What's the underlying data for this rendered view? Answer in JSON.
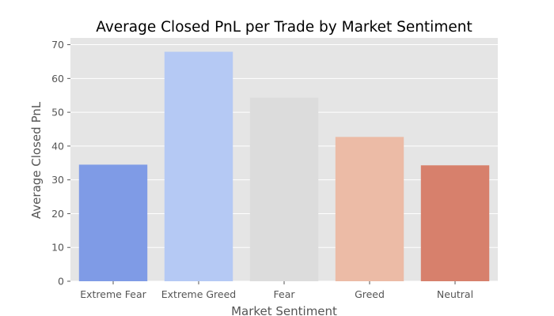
{
  "chart_data": {
    "type": "bar",
    "title": "Average Closed PnL per Trade by Market Sentiment",
    "xlabel": "Market Sentiment",
    "ylabel": "Average Closed PnL",
    "categories": [
      "Extreme Fear",
      "Extreme Greed",
      "Fear",
      "Greed",
      "Neutral"
    ],
    "values": [
      34.5,
      67.9,
      54.3,
      42.7,
      34.3
    ],
    "bar_colors": [
      "#7f9be6",
      "#b5c9f4",
      "#dcdcdc",
      "#ecbba6",
      "#d7806c"
    ],
    "ylim": [
      0,
      72
    ],
    "yticks": [
      0,
      10,
      20,
      30,
      40,
      50,
      60,
      70
    ],
    "grid": true,
    "style": "ggplot",
    "background_color": "#e5e5e5",
    "grid_color": "#ffffff"
  }
}
